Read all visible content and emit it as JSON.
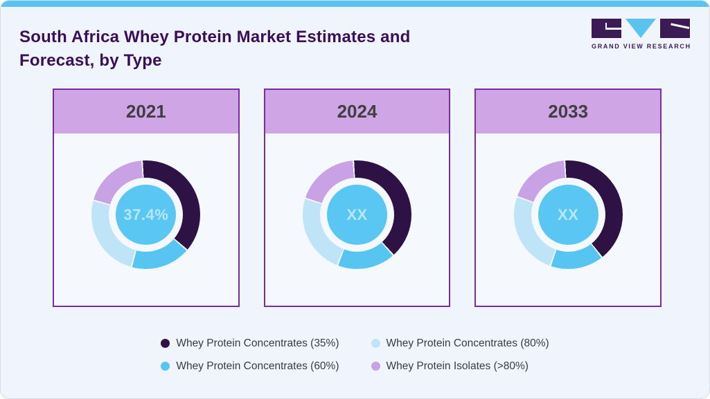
{
  "page": {
    "title": "South Africa Whey Protein Market Estimates and Forecast, by Type",
    "logo_text": "GRAND VIEW RESEARCH"
  },
  "colors": {
    "page_bg": "#eff5fa",
    "card_bg": "#f5f9fd",
    "accent_bar": "#5bc3ef",
    "title_text": "#3a0e59",
    "logo_purple": "#3c1a55",
    "card_border": "#7a2ba1",
    "card_header_bg": "#cfa5e6",
    "year_text": "#3f3e43",
    "legend_text": "#3a3a47",
    "center_circle": "#5ac7f2",
    "center_text": "#b7e6fa",
    "separator": "#f5f9fd"
  },
  "chart_data": {
    "type": "pie",
    "subtype": "donut",
    "title": "South Africa Whey Protein Market Estimates and Forecast, by Type",
    "legend_position": "bottom",
    "series_labels": [
      "Whey Protein Concentrates (35%)",
      "Whey Protein Concentrates (60%)",
      "Whey Protein Concentrates (80%)",
      "Whey Protein Isolates (>80%)"
    ],
    "series_colors": [
      "#2e1245",
      "#56c5f1",
      "#bfe3f7",
      "#c9a1e5"
    ],
    "charts": [
      {
        "year": "2021",
        "center_label": "37.4%",
        "start_deg": -4,
        "values_pct": [
          37.4,
          18.0,
          25.0,
          19.6
        ]
      },
      {
        "year": "2024",
        "center_label": "XX",
        "start_deg": -4,
        "values_pct": [
          39.5,
          17.5,
          24.0,
          19.0
        ]
      },
      {
        "year": "2033",
        "center_label": "XX",
        "start_deg": -4,
        "values_pct": [
          40.5,
          16.0,
          25.0,
          18.5
        ]
      }
    ]
  },
  "legend": {
    "items": [
      {
        "label": "Whey Protein Concentrates (35%)",
        "color": "#2e1245"
      },
      {
        "label": "Whey Protein Concentrates (60%)",
        "color": "#56c5f1"
      },
      {
        "label": "Whey Protein Concentrates (80%)",
        "color": "#bfe3f7"
      },
      {
        "label": "Whey Protein Isolates (>80%)",
        "color": "#c9a1e5"
      }
    ]
  }
}
